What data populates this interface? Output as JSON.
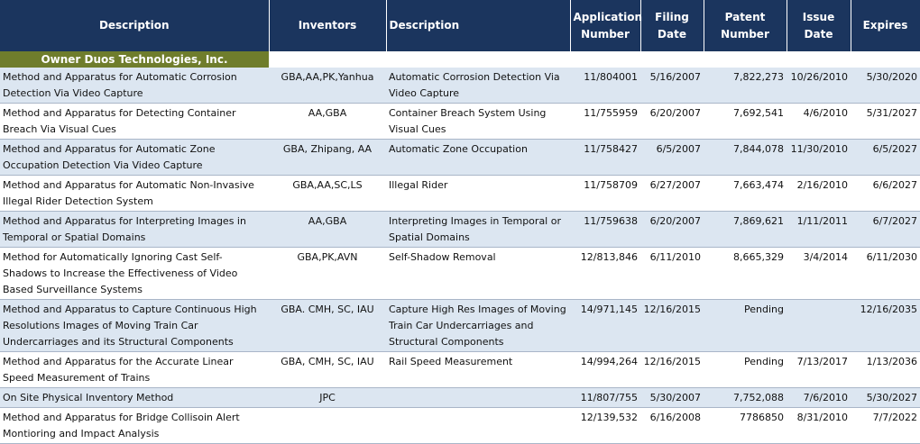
{
  "table": {
    "headers": [
      "Description",
      "Inventors",
      "Description",
      "Application Number",
      "Filing Date",
      "Patent Number",
      "Issue Date",
      "Expires"
    ],
    "group": "Owner Duos Technologies, Inc.",
    "rows": [
      [
        "Method and Apparatus for Automatic Corrosion Detection Via Video Capture",
        "GBA,AA,PK,Yanhua",
        "Automatic Corrosion Detection Via Video Capture",
        "11/804001",
        "5/16/2007",
        "7,822,273",
        "10/26/2010",
        "5/30/2020"
      ],
      [
        "Method and Apparatus for Detecting Container Breach Via Visual Cues",
        "AA,GBA",
        "Container Breach System Using Visual Cues",
        "11/755959",
        "6/20/2007",
        "7,692,541",
        "4/6/2010",
        "5/31/2027"
      ],
      [
        "Method and Apparatus for Automatic Zone Occupation Detection Via Video Capture",
        "GBA, Zhipang, AA",
        "Automatic Zone Occupation",
        "11/758427",
        "6/5/2007",
        "7,844,078",
        "11/30/2010",
        "6/5/2027"
      ],
      [
        "Method and Apparatus for Automatic Non-Invasive Illegal Rider Detection System",
        "GBA,AA,SC,LS",
        "Illegal Rider",
        "11/758709",
        "6/27/2007",
        "7,663,474",
        "2/16/2010",
        "6/6/2027"
      ],
      [
        "Method and Apparatus for Interpreting Images in Temporal or Spatial Domains",
        "AA,GBA",
        "Interpreting Images in Temporal or Spatial Domains",
        "11/759638",
        "6/20/2007",
        "7,869,621",
        "1/11/2011",
        "6/7/2027"
      ],
      [
        "Method for Automatically Ignoring Cast Self-Shadows to Increase the Effectiveness of Video Based Surveillance Systems",
        "GBA,PK,AVN",
        "Self-Shadow Removal",
        "12/813,846",
        "6/11/2010",
        "8,665,329",
        "3/4/2014",
        "6/11/2030"
      ],
      [
        "Method and Apparatus to Capture Continuous High Resolutions Images of Moving Train Car Undercarriages and its Structural Components",
        "GBA. CMH, SC, IAU",
        "Capture High Res Images of Moving Train Car Undercarriages and Structural Components",
        "14/971,145",
        "12/16/2015",
        "Pending",
        null,
        "12/16/2035"
      ],
      [
        "Method and Apparatus for the Accurate Linear Speed Measurement of Trains",
        "GBA, CMH, SC, IAU",
        "Rail Speed Measurement",
        "14/994,264",
        "12/16/2015",
        "Pending",
        "7/13/2017",
        "1/13/2036"
      ],
      [
        "On Site Physical Inventory Method",
        "JPC",
        null,
        "11/807/755",
        "5/30/2007",
        "7,752,088",
        "7/6/2010",
        "5/30/2027"
      ],
      [
        "Method and Apparatus for Bridge Collisoin Alert Montioring and Impact Analysis",
        null,
        null,
        "12/139,532",
        "6/16/2008",
        "7786850",
        "8/31/2010",
        "7/7/2022"
      ]
    ]
  }
}
